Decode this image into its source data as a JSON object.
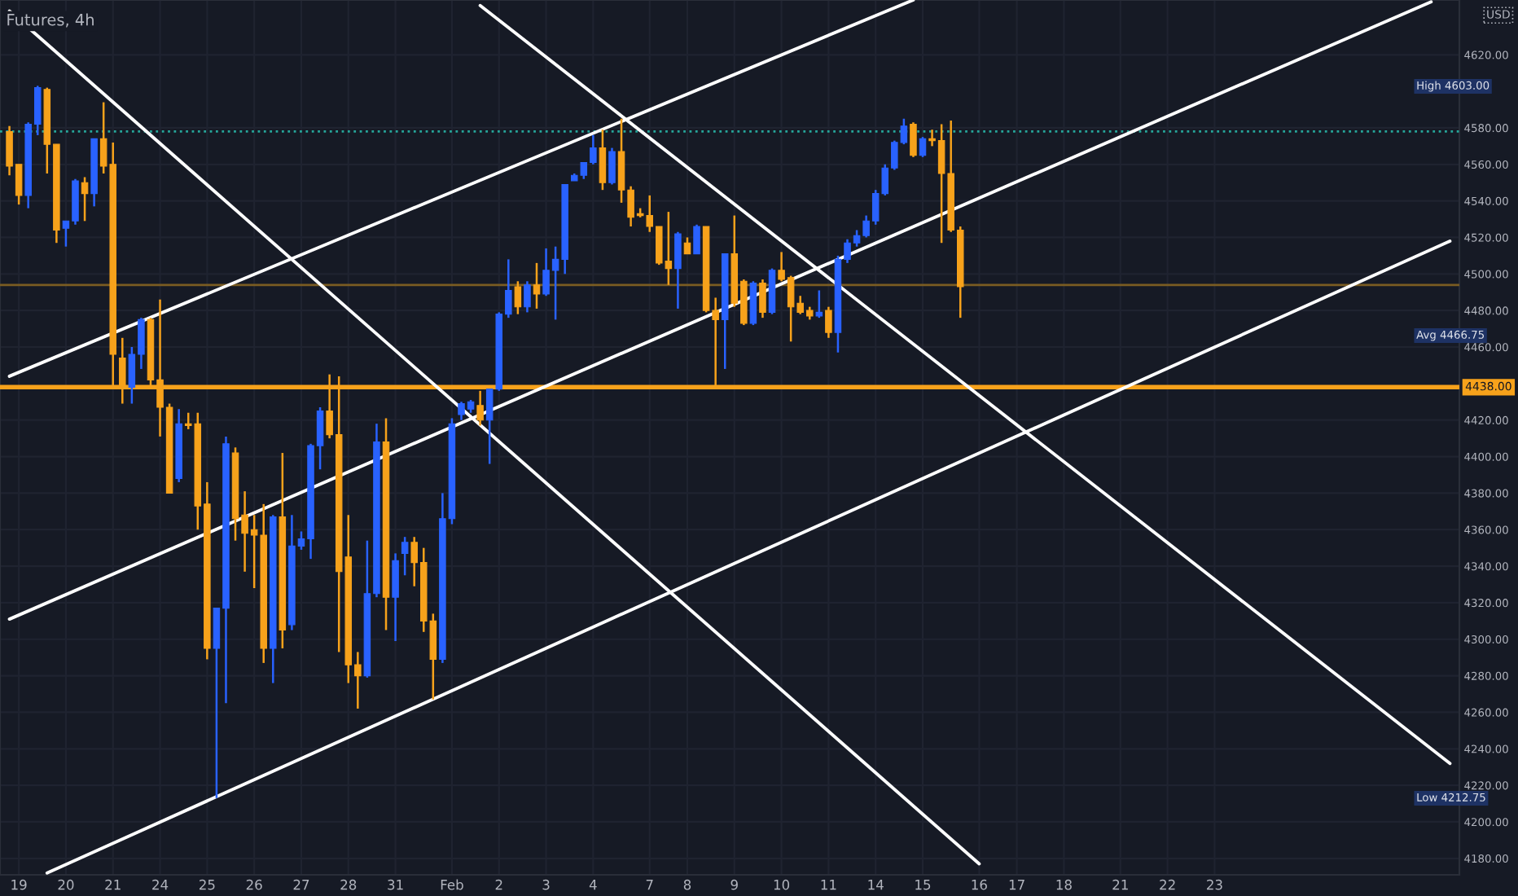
{
  "chart_data": {
    "type": "candlestick",
    "title": "Futures, 4h",
    "categories": [
      null,
      "19",
      null,
      null,
      null,
      null,
      "20",
      null,
      null,
      null,
      null,
      "21",
      null,
      null,
      null,
      null,
      "24",
      null,
      null,
      null,
      null,
      "25",
      null,
      null,
      null,
      null,
      "26",
      null,
      null,
      null,
      null,
      "27",
      null,
      null,
      null,
      null,
      "28",
      null,
      null,
      null,
      null,
      "31",
      null,
      null,
      null,
      null,
      null,
      "Feb",
      null,
      null,
      null,
      null,
      "2",
      null,
      null,
      null,
      null,
      "3",
      null,
      null,
      null,
      null,
      "4",
      null,
      null,
      null,
      null,
      null,
      "7",
      null,
      null,
      null,
      "8",
      null,
      null,
      null,
      null,
      "9",
      null,
      null,
      null,
      null,
      "10",
      null,
      null,
      null,
      null,
      "11",
      null,
      null,
      null,
      null,
      "14",
      null,
      null,
      null,
      null,
      "15",
      null,
      null,
      null,
      null,
      null,
      "16",
      null,
      null,
      null,
      "17",
      null,
      null,
      null,
      null,
      "18",
      null,
      null,
      null,
      null,
      null,
      "21",
      null,
      null,
      null,
      null,
      "22",
      null,
      null,
      null,
      null,
      "23",
      null,
      null,
      null,
      null,
      null,
      null,
      null,
      null,
      null,
      null,
      null,
      null,
      null,
      null,
      null,
      null,
      null,
      null,
      null,
      null,
      null,
      null,
      null,
      null,
      null
    ],
    "ohlc": [
      [
        4578,
        4581,
        4554,
        4559
      ],
      [
        4560,
        4560,
        4538,
        4543
      ],
      [
        4543,
        4583,
        4536,
        4582
      ],
      [
        4582,
        4603,
        4576,
        4602
      ],
      [
        4601,
        4602,
        4555,
        4571
      ],
      [
        4571,
        4571,
        4517,
        4524
      ],
      [
        4525,
        4529,
        4515,
        4529
      ],
      [
        4529,
        4552,
        4527,
        4551
      ],
      [
        4550,
        4553,
        4529,
        4544
      ],
      [
        4544,
        4574,
        4537,
        4574
      ],
      [
        4574,
        4594,
        4555,
        4559
      ],
      [
        4560,
        4572,
        4438,
        4456
      ],
      [
        4454,
        4465,
        4429,
        4438
      ],
      [
        4438,
        4460,
        4429,
        4456
      ],
      [
        4456,
        4476,
        4448,
        4475
      ],
      [
        4475,
        4476,
        4439,
        4442
      ],
      [
        4442,
        4486,
        4411,
        4427
      ],
      [
        4427,
        4429,
        4380,
        4380
      ],
      [
        4388,
        4426,
        4386,
        4418
      ],
      [
        4418,
        4424,
        4415,
        4417
      ],
      [
        4418,
        4424,
        4360,
        4373
      ],
      [
        4374,
        4386,
        4289,
        4295
      ],
      [
        4295,
        4317,
        4213,
        4317
      ],
      [
        4317,
        4411,
        4265,
        4407
      ],
      [
        4402,
        4405,
        4354,
        4366
      ],
      [
        4368,
        4381,
        4337,
        4358
      ],
      [
        4360,
        4368,
        4328,
        4357
      ],
      [
        4357,
        4374,
        4287,
        4295
      ],
      [
        4295,
        4368,
        4276,
        4367
      ],
      [
        4367,
        4402,
        4295,
        4305
      ],
      [
        4308,
        4368,
        4305,
        4351
      ],
      [
        4351,
        4359,
        4349,
        4355
      ],
      [
        4355,
        4407,
        4344,
        4406
      ],
      [
        4406,
        4427,
        4393,
        4425
      ],
      [
        4425,
        4445,
        4410,
        4412
      ],
      [
        4412,
        4444,
        4293,
        4337
      ],
      [
        4345,
        4368,
        4276,
        4286
      ],
      [
        4286,
        4293,
        4262,
        4280
      ],
      [
        4280,
        4354,
        4279,
        4325
      ],
      [
        4325,
        4418,
        4323,
        4408
      ],
      [
        4408,
        4421,
        4305,
        4323
      ],
      [
        4323,
        4347,
        4299,
        4343
      ],
      [
        4347,
        4356,
        4335,
        4353
      ],
      [
        4353,
        4356,
        4329,
        4342
      ],
      [
        4342,
        4350,
        4304,
        4310
      ],
      [
        4310,
        4314,
        4267,
        4289
      ],
      [
        4289,
        4380,
        4287,
        4366
      ],
      [
        4366,
        4421,
        4363,
        4418
      ],
      [
        4423,
        4430,
        4420,
        4429
      ],
      [
        4426,
        4431,
        4424,
        4430
      ],
      [
        4428,
        4436,
        4417,
        4420
      ],
      [
        4420,
        4437,
        4396,
        4437
      ],
      [
        4437,
        4479,
        4436,
        4478
      ],
      [
        4478,
        4508,
        4476,
        4491
      ],
      [
        4493,
        4496,
        4478,
        4482
      ],
      [
        4482,
        4496,
        4479,
        4494
      ],
      [
        4494,
        4506,
        4481,
        4489
      ],
      [
        4489,
        4514,
        4488,
        4502
      ],
      [
        4502,
        4515,
        4475,
        4508
      ],
      [
        4508,
        4549,
        4500,
        4549
      ],
      [
        4551,
        4555,
        4551,
        4554
      ],
      [
        4554,
        4561,
        4552,
        4561
      ],
      [
        4561,
        4576,
        4560,
        4569
      ],
      [
        4569,
        4579,
        4546,
        4550
      ],
      [
        4550,
        4569,
        4549,
        4567
      ],
      [
        4567,
        4585,
        4539,
        4546
      ],
      [
        4546,
        4548,
        4526,
        4531
      ],
      [
        4533,
        4536,
        4531,
        4532
      ],
      [
        4532,
        4543,
        4523,
        4526
      ],
      [
        4526,
        4526,
        4505,
        4506
      ],
      [
        4507,
        4534,
        4494,
        4503
      ],
      [
        4503,
        4523,
        4481,
        4522
      ],
      [
        4517,
        4520,
        4511,
        4511
      ],
      [
        4511,
        4527,
        4511,
        4526
      ],
      [
        4526,
        4526,
        4479,
        4480
      ],
      [
        4480,
        4487,
        4438,
        4475
      ],
      [
        4475,
        4511,
        4448,
        4511
      ],
      [
        4511,
        4532,
        4482,
        4484
      ],
      [
        4496,
        4497,
        4472,
        4473
      ],
      [
        4473,
        4496,
        4472,
        4495
      ],
      [
        4495,
        4497,
        4476,
        4479
      ],
      [
        4479,
        4503,
        4478,
        4502
      ],
      [
        4502,
        4512,
        4496,
        4497
      ],
      [
        4498,
        4499,
        4463,
        4482
      ],
      [
        4484,
        4488,
        4478,
        4479
      ],
      [
        4480,
        4482,
        4475,
        4477
      ],
      [
        4477,
        4491,
        4476,
        4479
      ],
      [
        4480,
        4482,
        4465,
        4468
      ],
      [
        4468,
        4510,
        4457,
        4508
      ],
      [
        4508,
        4519,
        4506,
        4517
      ],
      [
        4517,
        4524,
        4515,
        4521
      ],
      [
        4521,
        4532,
        4520,
        4529
      ],
      [
        4529,
        4546,
        4527,
        4544
      ],
      [
        4544,
        4560,
        4543,
        4558
      ],
      [
        4558,
        4573,
        4557,
        4572
      ],
      [
        4572,
        4585,
        4571,
        4581
      ],
      [
        4582,
        4583,
        4564,
        4565
      ],
      [
        4565,
        4575,
        4564,
        4574
      ],
      [
        4574,
        4579,
        4570,
        4573
      ],
      [
        4573,
        4582,
        4517,
        4555
      ],
      [
        4555,
        4584,
        4523,
        4524
      ],
      [
        4524,
        4526,
        4476,
        4493
      ],
      null,
      null,
      null,
      null,
      null,
      null,
      null,
      null,
      null,
      null,
      null,
      null,
      null,
      null,
      null,
      null,
      null,
      null,
      null,
      null,
      null,
      null,
      null,
      null,
      null,
      null,
      null,
      null,
      null,
      null,
      null,
      null,
      null,
      null,
      null,
      null,
      null,
      null,
      null,
      null,
      null,
      null,
      null,
      null,
      null,
      null,
      null,
      null,
      null,
      null,
      null,
      null
    ],
    "colors": [
      "#f7a21b",
      "#f7a21b",
      "#2962ff",
      "#2962ff",
      "#f7a21b",
      "#f7a21b",
      "#2962ff",
      "#2962ff",
      "#f7a21b",
      "#2962ff",
      "#f7a21b",
      "#f7a21b",
      "#f7a21b",
      "#2962ff",
      "#2962ff",
      "#f7a21b",
      "#f7a21b",
      "#f7a21b",
      "#2962ff",
      "#f7a21b",
      "#f7a21b",
      "#f7a21b",
      "#2962ff",
      "#2962ff",
      "#f7a21b",
      "#f7a21b",
      "#f7a21b",
      "#f7a21b",
      "#2962ff",
      "#f7a21b",
      "#2962ff",
      "#2962ff",
      "#2962ff",
      "#2962ff",
      "#f7a21b",
      "#f7a21b",
      "#f7a21b",
      "#f7a21b",
      "#2962ff",
      "#2962ff",
      "#f7a21b",
      "#2962ff",
      "#2962ff",
      "#f7a21b",
      "#f7a21b",
      "#f7a21b",
      "#2962ff",
      "#2962ff",
      "#2962ff",
      "#2962ff",
      "#f7a21b",
      "#2962ff",
      "#2962ff",
      "#2962ff",
      "#f7a21b",
      "#2962ff",
      "#f7a21b",
      "#2962ff",
      "#2962ff",
      "#2962ff",
      "#2962ff",
      "#2962ff",
      "#2962ff",
      "#f7a21b",
      "#2962ff",
      "#f7a21b",
      "#f7a21b",
      "#f7a21b",
      "#f7a21b",
      "#f7a21b",
      "#f7a21b",
      "#2962ff",
      "#f7a21b",
      "#2962ff",
      "#f7a21b",
      "#f7a21b",
      "#2962ff",
      "#f7a21b",
      "#f7a21b",
      "#2962ff",
      "#f7a21b",
      "#2962ff",
      "#f7a21b",
      "#f7a21b",
      "#f7a21b",
      "#f7a21b",
      "#2962ff",
      "#f7a21b",
      "#2962ff",
      "#2962ff",
      "#2962ff",
      "#2962ff",
      "#2962ff",
      "#2962ff",
      "#2962ff",
      "#2962ff",
      "#f7a21b",
      "#2962ff",
      "#f7a21b",
      "#f7a21b",
      "#f7a21b",
      "#f7a21b",
      null,
      null,
      null,
      null,
      null,
      null,
      null,
      null,
      null,
      null,
      null,
      null,
      null,
      null,
      null,
      null,
      null,
      null,
      null,
      null,
      null,
      null,
      null,
      null,
      null,
      null,
      null,
      null,
      null,
      null,
      null,
      null,
      null,
      null,
      null,
      null,
      null,
      null,
      null,
      null,
      null,
      null,
      null,
      null,
      null,
      null,
      null,
      null,
      null,
      null,
      null,
      null
    ],
    "series": [
      {
        "type": "line",
        "color": "#ffffff",
        "values": [
          4644,
          null,
          null,
          null,
          null,
          null,
          null,
          null,
          null,
          null,
          null,
          null,
          null,
          null,
          null,
          null,
          null,
          null,
          null,
          null,
          null,
          null,
          null,
          null,
          null,
          null,
          null,
          null,
          null,
          null,
          null,
          null,
          null,
          null,
          null,
          null,
          null,
          null,
          null,
          null,
          null,
          null,
          null,
          null,
          null,
          null,
          null,
          null,
          null,
          null,
          null,
          null,
          null,
          null,
          null,
          null,
          null,
          null,
          null,
          null,
          null,
          null,
          null,
          null,
          null,
          null,
          null,
          null,
          null,
          null,
          null,
          null,
          null,
          null,
          null,
          null,
          null,
          null,
          null,
          null,
          null,
          null,
          null,
          null,
          null,
          null,
          null,
          null,
          null,
          null,
          null,
          null,
          null,
          null,
          null,
          null,
          null,
          null,
          null,
          null,
          null,
          null,
          null,
          4177,
          null,
          null,
          null,
          null,
          null,
          null,
          null,
          null,
          null,
          null,
          null,
          null,
          null,
          null,
          null,
          null,
          null,
          null,
          null,
          null,
          null,
          null,
          null,
          null,
          null,
          null,
          null,
          null,
          null,
          null,
          null,
          null,
          null,
          null,
          null,
          null,
          null,
          null,
          null,
          null,
          null,
          null,
          null,
          null,
          null,
          null,
          null,
          null,
          null,
          null
        ]
      },
      {
        "type": "line",
        "color": "#ffffff",
        "values": [
          null,
          null,
          null,
          null,
          null,
          null,
          null,
          null,
          null,
          null,
          null,
          null,
          null,
          null,
          null,
          null,
          null,
          null,
          null,
          null,
          null,
          null,
          null,
          null,
          null,
          null,
          null,
          null,
          null,
          null,
          null,
          null,
          null,
          null,
          null,
          null,
          null,
          null,
          null,
          null,
          null,
          null,
          null,
          null,
          null,
          null,
          null,
          null,
          null,
          null,
          4647,
          null,
          null,
          null,
          null,
          null,
          null,
          null,
          null,
          null,
          null,
          null,
          null,
          null,
          null,
          null,
          null,
          null,
          null,
          null,
          null,
          null,
          null,
          null,
          null,
          null,
          null,
          null,
          null,
          null,
          null,
          null,
          null,
          null,
          null,
          null,
          null,
          null,
          null,
          null,
          null,
          null,
          null,
          null,
          null,
          null,
          null,
          null,
          null,
          null,
          null,
          null,
          null,
          null,
          null,
          null,
          null,
          null,
          null,
          null,
          null,
          null,
          null,
          null,
          null,
          null,
          null,
          null,
          null,
          null,
          null,
          null,
          null,
          null,
          null,
          null,
          null,
          null,
          null,
          null,
          null,
          null,
          null,
          null,
          null,
          null,
          null,
          null,
          null,
          null,
          null,
          null,
          null,
          null,
          null,
          null,
          null,
          null,
          null,
          null,
          null,
          null,
          null,
          4232
        ]
      },
      {
        "type": "line",
        "color": "#ffffff",
        "values": [
          4444,
          null,
          null,
          null,
          null,
          null,
          null,
          null,
          null,
          null,
          null,
          null,
          null,
          null,
          null,
          null,
          null,
          null,
          null,
          null,
          null,
          null,
          null,
          null,
          null,
          null,
          null,
          null,
          null,
          null,
          null,
          null,
          null,
          null,
          null,
          null,
          null,
          null,
          null,
          null,
          null,
          null,
          null,
          null,
          null,
          null,
          null,
          null,
          null,
          null,
          null,
          null,
          null,
          null,
          null,
          null,
          null,
          null,
          null,
          null,
          null,
          null,
          null,
          null,
          null,
          null,
          null,
          null,
          null,
          null,
          null,
          null,
          null,
          null,
          null,
          null,
          null,
          null,
          null,
          null,
          null,
          null,
          null,
          null,
          null,
          null,
          null,
          null,
          null,
          null,
          null,
          null,
          null,
          null,
          null,
          null,
          4650,
          null,
          null,
          null,
          null,
          null,
          null,
          null,
          null,
          null,
          null,
          null,
          null,
          null,
          null,
          null,
          null,
          null,
          null,
          null,
          null,
          null,
          null,
          null,
          null,
          null,
          null,
          null,
          null,
          null,
          null,
          null,
          null,
          null,
          null,
          null,
          null,
          null,
          null,
          null,
          null,
          null,
          null,
          null,
          null,
          null,
          null,
          null,
          null,
          null,
          null,
          null,
          null,
          null,
          null,
          null,
          null,
          null
        ]
      },
      {
        "type": "line",
        "color": "#ffffff",
        "values": [
          4311,
          null,
          null,
          null,
          null,
          null,
          null,
          null,
          null,
          null,
          null,
          null,
          null,
          null,
          null,
          null,
          null,
          null,
          null,
          null,
          null,
          null,
          null,
          null,
          null,
          null,
          null,
          null,
          null,
          null,
          null,
          null,
          null,
          null,
          null,
          null,
          null,
          null,
          null,
          null,
          null,
          null,
          null,
          null,
          null,
          null,
          null,
          null,
          null,
          null,
          null,
          null,
          null,
          null,
          null,
          null,
          null,
          null,
          null,
          null,
          null,
          null,
          null,
          null,
          null,
          null,
          null,
          null,
          null,
          null,
          null,
          null,
          null,
          null,
          null,
          null,
          null,
          null,
          null,
          null,
          null,
          null,
          null,
          null,
          null,
          null,
          null,
          null,
          null,
          null,
          null,
          null,
          null,
          null,
          null,
          null,
          null,
          null,
          null,
          null,
          null,
          null,
          null,
          null,
          null,
          null,
          null,
          null,
          null,
          null,
          null,
          null,
          null,
          null,
          null,
          null,
          null,
          null,
          null,
          null,
          null,
          null,
          null,
          null,
          null,
          null,
          null,
          null,
          null,
          null,
          null,
          null,
          null,
          null,
          null,
          null,
          null,
          null,
          null,
          null,
          null,
          null,
          null,
          null,
          null,
          null,
          null,
          null,
          null,
          null,
          null,
          4649,
          null,
          null
        ]
      },
      {
        "type": "line",
        "color": "#ffffff",
        "values": [
          null,
          null,
          null,
          null,
          4172,
          null,
          null,
          null,
          null,
          null,
          null,
          null,
          null,
          null,
          null,
          null,
          null,
          null,
          null,
          null,
          null,
          null,
          null,
          null,
          null,
          null,
          null,
          null,
          null,
          null,
          null,
          null,
          null,
          null,
          null,
          null,
          null,
          null,
          null,
          null,
          null,
          null,
          null,
          null,
          null,
          null,
          null,
          null,
          null,
          null,
          null,
          null,
          null,
          null,
          null,
          null,
          null,
          null,
          null,
          null,
          null,
          null,
          null,
          null,
          null,
          null,
          null,
          null,
          null,
          null,
          null,
          null,
          null,
          null,
          null,
          null,
          null,
          null,
          null,
          null,
          null,
          null,
          null,
          null,
          null,
          null,
          null,
          null,
          null,
          null,
          null,
          null,
          null,
          null,
          null,
          null,
          null,
          null,
          null,
          null,
          null,
          null,
          null,
          null,
          null,
          null,
          null,
          null,
          null,
          null,
          null,
          null,
          null,
          null,
          null,
          null,
          null,
          null,
          null,
          null,
          null,
          null,
          null,
          null,
          null,
          null,
          null,
          null,
          null,
          null,
          null,
          null,
          null,
          null,
          null,
          null,
          null,
          null,
          null,
          null,
          null,
          null,
          null,
          null,
          null,
          null,
          null,
          null,
          null,
          null,
          null,
          null,
          null,
          4518
        ]
      }
    ],
    "ref_lines": [
      {
        "axis": "y",
        "value": 4438,
        "label": "4438.00",
        "color": "#f7a21b"
      },
      {
        "axis": "y",
        "value": 4578,
        "color": "#26a69a",
        "line_style": "dotted"
      },
      {
        "axis": "y",
        "value": 4494,
        "color": "#7a5c22"
      }
    ],
    "annotations": [
      "High 4603.00",
      "Avg 4466.75",
      "Low 4212.75",
      "USD"
    ],
    "ylim": [
      4171,
      4650
    ],
    "yticks": [
      {
        "value": 4180,
        "label": "4180.00"
      },
      {
        "value": 4200,
        "label": "4200.00"
      },
      {
        "value": 4220,
        "label": "4220.00"
      },
      {
        "value": 4240,
        "label": "4240.00"
      },
      {
        "value": 4260,
        "label": "4260.00"
      },
      {
        "value": 4280,
        "label": "4280.00"
      },
      {
        "value": 4300,
        "label": "4300.00"
      },
      {
        "value": 4320,
        "label": "4320.00"
      },
      {
        "value": 4340,
        "label": "4340.00"
      },
      {
        "value": 4360,
        "label": "4360.00"
      },
      {
        "value": 4380,
        "label": "4380.00"
      },
      {
        "value": 4400,
        "label": "4400.00"
      },
      {
        "value": 4420,
        "label": "4420.00"
      },
      {
        "value": 4460,
        "label": "4460.00"
      },
      {
        "value": 4480,
        "label": "4480.00"
      },
      {
        "value": 4500,
        "label": "4500.00"
      },
      {
        "value": 4520,
        "label": "4520.00"
      },
      {
        "value": 4540,
        "label": "4540.00"
      },
      {
        "value": 4560,
        "label": "4560.00"
      },
      {
        "value": 4580,
        "label": "4580.00"
      },
      {
        "value": 4620,
        "label": "4620.00"
      }
    ],
    "grid": true
  }
}
